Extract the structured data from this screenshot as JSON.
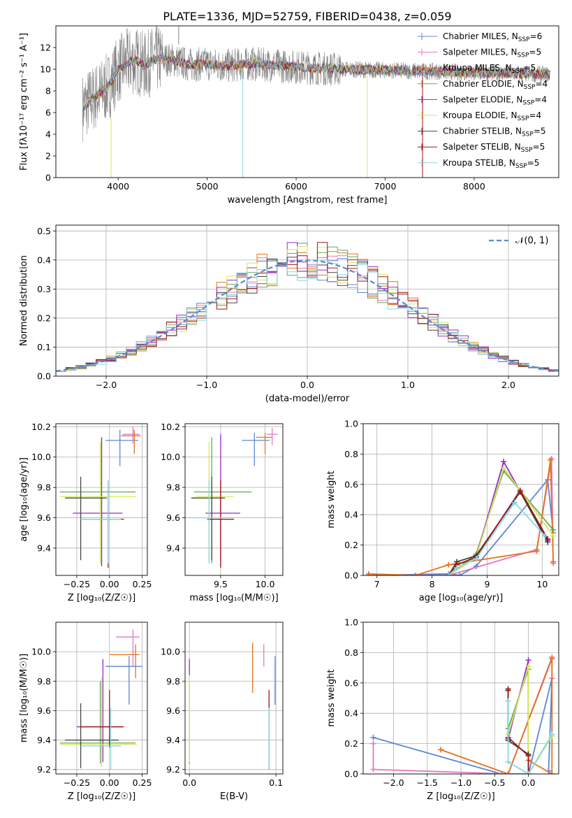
{
  "figure": {
    "title": "PLATE=1336, MJD=52759, FIBERID=0438, z=0.059"
  },
  "colors": {
    "Chabrier MILES": "#5b87d6",
    "Salpeter MILES": "#e377c2",
    "Kroupa MILES": "#e3731c",
    "Chabrier ELODIE": "#6aa84f",
    "Salpeter ELODIE": "#9a28c9",
    "Kroupa ELODIE": "#d4e85c",
    "Chabrier STELIB": "#444444",
    "Salpeter STELIB": "#a31515",
    "Kroupa STELIB": "#86d7e3",
    "data_spectrum": "#808080",
    "normal_curve": "#5b87d6"
  },
  "chart_data": [
    {
      "id": "spectrum",
      "type": "line",
      "xlabel": "wavelength [Angstrom, rest frame]",
      "ylabel": "Flux [fλ10⁻¹⁷ erg cm⁻² s⁻¹ A⁻¹]",
      "xlim": [
        3300,
        8950
      ],
      "ylim": [
        0,
        14
      ],
      "xticks": [
        4000,
        5000,
        6000,
        7000,
        8000
      ],
      "yticks": [
        0,
        2,
        4,
        6,
        8,
        10,
        12
      ],
      "grid": false,
      "legend": "top-right",
      "continuum": {
        "x": [
          3600,
          3700,
          3800,
          3900,
          4000,
          4100,
          4200,
          4300,
          4400,
          4600,
          4800,
          5000,
          5200,
          5500,
          6000,
          6500,
          7000,
          7500,
          8000,
          8500,
          8850
        ],
        "y": [
          6.5,
          7.2,
          7.8,
          8.5,
          10.0,
          10.6,
          10.8,
          10.3,
          10.9,
          10.9,
          10.4,
          10.5,
          10.3,
          10.5,
          10.2,
          10.0,
          9.9,
          9.8,
          9.7,
          9.6,
          9.5
        ]
      },
      "series": [
        {
          "name": "Chabrier MILES, N_SSP=6"
        },
        {
          "name": "Salpeter MILES, N_SSP=5"
        },
        {
          "name": "Kroupa MILES, N_SSP=5"
        },
        {
          "name": "Chabrier ELODIE, N_SSP=4"
        },
        {
          "name": "Salpeter ELODIE, N_SSP=4"
        },
        {
          "name": "Kroupa ELODIE, N_SSP=4"
        },
        {
          "name": "Chabrier STELIB, N_SSP=5"
        },
        {
          "name": "Salpeter STELIB, N_SSP=5"
        },
        {
          "name": "Kroupa STELIB, N_SSP=5"
        }
      ]
    },
    {
      "id": "residuals",
      "type": "line",
      "xlabel": "(data-model)/error",
      "ylabel": "Normed distribution",
      "xlim": [
        -2.5,
        2.5
      ],
      "ylim": [
        0,
        0.52
      ],
      "xticks": [
        -2,
        -1,
        0,
        1,
        2
      ],
      "yticks": [
        0.0,
        0.1,
        0.2,
        0.3,
        0.4,
        0.5
      ],
      "grid": true,
      "legend": "top-right",
      "legend_label": "𝒩(0, 1)",
      "bin_width": 0.1
    },
    {
      "id": "age-vs-Z",
      "type": "scatter",
      "xlabel": "Z [log₁₀(Z/Z☉)]",
      "ylabel": "age  [log₁₀(age/yr)]",
      "xlim": [
        -0.41,
        0.29
      ],
      "ylim": [
        9.22,
        10.22
      ],
      "xticks": [
        -0.25,
        0.0,
        0.25
      ],
      "yticks": [
        9.4,
        9.6,
        9.8,
        10.0,
        10.2
      ],
      "grid": true,
      "points": [
        {
          "model": "Chabrier MILES",
          "x": 0.08,
          "y": 10.11,
          "xlo": -0.03,
          "xhi": 0.22,
          "ylo": 9.94,
          "yhi": 10.18
        },
        {
          "model": "Salpeter MILES",
          "x": 0.18,
          "y": 10.15,
          "xlo": 0.1,
          "xhi": 0.23,
          "ylo": 10.09,
          "yhi": 10.2
        },
        {
          "model": "Kroupa MILES",
          "x": 0.19,
          "y": 10.14,
          "xlo": 0.09,
          "xhi": 0.24,
          "ylo": 10.02,
          "yhi": 10.18
        },
        {
          "model": "Chabrier ELODIE",
          "x": -0.06,
          "y": 9.77,
          "xlo": -0.38,
          "xhi": 0.2,
          "ylo": 9.28,
          "yhi": 10.13
        },
        {
          "model": "Salpeter ELODIE",
          "x": -0.06,
          "y": 9.63,
          "xlo": -0.28,
          "xhi": 0.1,
          "ylo": 9.28,
          "yhi": 10.13
        },
        {
          "model": "Kroupa ELODIE",
          "x": -0.07,
          "y": 9.74,
          "xlo": -0.38,
          "xhi": 0.2,
          "ylo": 9.3,
          "yhi": 10.1
        },
        {
          "model": "Chabrier STELIB",
          "x": -0.22,
          "y": 9.73,
          "xlo": -0.34,
          "xhi": -0.02,
          "ylo": 9.32,
          "yhi": 9.87
        },
        {
          "model": "Salpeter STELIB",
          "x": -0.01,
          "y": 9.59,
          "xlo": -0.22,
          "xhi": 0.11,
          "ylo": 9.27,
          "yhi": 9.84
        },
        {
          "model": "Kroupa STELIB",
          "x": -0.01,
          "y": 9.59,
          "xlo": -0.22,
          "xhi": 0.09,
          "ylo": 9.3,
          "yhi": 9.85
        }
      ]
    },
    {
      "id": "age-vs-mass",
      "type": "scatter",
      "xlabel": "mass [log₁₀(M/M☉)]",
      "xlim": [
        9.1,
        10.2
      ],
      "ylim": [
        9.22,
        10.22
      ],
      "xticks": [
        9.5,
        10.0
      ],
      "yticks": [
        9.4,
        9.6,
        9.8,
        10.0,
        10.2
      ],
      "grid": true,
      "points": [
        {
          "model": "Chabrier MILES",
          "x": 9.88,
          "y": 10.11,
          "xlo": 9.74,
          "xhi": 10.05,
          "ylo": 9.94,
          "yhi": 10.16
        },
        {
          "model": "Salpeter MILES",
          "x": 10.08,
          "y": 10.15,
          "xlo": 10.02,
          "xhi": 10.14,
          "ylo": 10.08,
          "yhi": 10.19
        },
        {
          "model": "Kroupa MILES",
          "x": 10.0,
          "y": 10.13,
          "xlo": 9.9,
          "xhi": 10.08,
          "ylo": 10.02,
          "yhi": 10.16
        },
        {
          "model": "Chabrier ELODIE",
          "x": 9.4,
          "y": 9.77,
          "xlo": 9.2,
          "xhi": 9.85,
          "ylo": 9.3,
          "yhi": 10.13
        },
        {
          "model": "Salpeter ELODIE",
          "x": 9.5,
          "y": 9.63,
          "xlo": 9.33,
          "xhi": 9.72,
          "ylo": 9.28,
          "yhi": 10.15
        },
        {
          "model": "Kroupa ELODIE",
          "x": 9.37,
          "y": 9.74,
          "xlo": 9.22,
          "xhi": 9.65,
          "ylo": 9.32,
          "yhi": 10.1
        },
        {
          "model": "Chabrier STELIB",
          "x": 9.4,
          "y": 9.73,
          "xlo": 9.17,
          "xhi": 9.55,
          "ylo": 9.32,
          "yhi": 9.87
        },
        {
          "model": "Salpeter STELIB",
          "x": 9.5,
          "y": 9.59,
          "xlo": 9.35,
          "xhi": 9.65,
          "ylo": 9.27,
          "yhi": 9.85
        },
        {
          "model": "Kroupa STELIB",
          "x": 9.37,
          "y": 9.6,
          "xlo": 9.15,
          "xhi": 9.55,
          "ylo": 9.3,
          "yhi": 9.85
        }
      ]
    },
    {
      "id": "mass-weight-vs-age",
      "type": "line",
      "xlabel": "age  [log₁₀(age/yr)]",
      "ylabel": "mass weight",
      "xlim": [
        6.75,
        10.3
      ],
      "ylim": [
        0,
        1.0
      ],
      "xticks": [
        7,
        8,
        9,
        10
      ],
      "yticks": [
        0.0,
        0.2,
        0.4,
        0.6,
        0.8,
        1.0
      ],
      "grid": true,
      "series": [
        {
          "model": "Chabrier MILES",
          "x": [
            6.85,
            8.3,
            8.5,
            8.8,
            10.1,
            10.2
          ],
          "y": [
            0.0,
            0.01,
            0.0,
            0.06,
            0.63,
            0.28
          ]
        },
        {
          "model": "Salpeter MILES",
          "x": [
            6.85,
            8.3,
            9.9,
            10.17,
            10.2
          ],
          "y": [
            0.0,
            0.0,
            0.17,
            0.77,
            0.08
          ]
        },
        {
          "model": "Kroupa MILES",
          "x": [
            6.85,
            7.7,
            8.3,
            9.9,
            10.15,
            10.2
          ],
          "y": [
            0.01,
            0.0,
            0.07,
            0.16,
            0.76,
            0.09
          ]
        },
        {
          "model": "Chabrier ELODIE",
          "x": [
            8.3,
            8.8,
            9.3,
            10.2
          ],
          "y": [
            0.0,
            0.14,
            0.69,
            0.3
          ]
        },
        {
          "model": "Salpeter ELODIE",
          "x": [
            8.3,
            8.8,
            9.3,
            10.1
          ],
          "y": [
            0.0,
            0.12,
            0.75,
            0.23
          ]
        },
        {
          "model": "Kroupa ELODIE",
          "x": [
            8.3,
            8.8,
            9.3,
            10.2
          ],
          "y": [
            0.0,
            0.12,
            0.71,
            0.26
          ]
        },
        {
          "model": "Chabrier STELIB",
          "x": [
            8.3,
            8.45,
            8.8,
            9.6,
            10.1
          ],
          "y": [
            0.0,
            0.09,
            0.13,
            0.55,
            0.22
          ]
        },
        {
          "model": "Salpeter STELIB",
          "x": [
            8.3,
            8.45,
            8.8,
            9.6,
            10.1
          ],
          "y": [
            0.0,
            0.07,
            0.12,
            0.56,
            0.24
          ]
        },
        {
          "model": "Kroupa STELIB",
          "x": [
            8.3,
            8.45,
            8.8,
            9.5,
            10.05
          ],
          "y": [
            0.0,
            0.05,
            0.11,
            0.48,
            0.26
          ]
        }
      ]
    },
    {
      "id": "mass-vs-Z",
      "type": "scatter",
      "xlabel": "Z [log₁₀(Z/Z☉)]",
      "ylabel": "mass [log₁₀(M/M☉)]",
      "xlim": [
        -0.41,
        0.29
      ],
      "ylim": [
        9.17,
        10.2
      ],
      "xticks": [
        -0.25,
        0.0,
        0.25
      ],
      "yticks": [
        9.2,
        9.4,
        9.6,
        9.8,
        10.0
      ],
      "grid": true,
      "points": [
        {
          "model": "Chabrier MILES",
          "x": 0.15,
          "y": 9.9,
          "xlo": -0.03,
          "xhi": 0.25,
          "ylo": 9.64,
          "yhi": 9.97
        },
        {
          "model": "Salpeter MILES",
          "x": 0.18,
          "y": 10.1,
          "xlo": 0.05,
          "xhi": 0.23,
          "ylo": 9.9,
          "yhi": 10.15
        },
        {
          "model": "Kroupa MILES",
          "x": 0.2,
          "y": 9.98,
          "xlo": 0.0,
          "xhi": 0.23,
          "ylo": 9.82,
          "yhi": 10.05
        },
        {
          "model": "Chabrier ELODIE",
          "x": -0.07,
          "y": 9.38,
          "xlo": -0.38,
          "xhi": 0.2,
          "ylo": 9.24,
          "yhi": 9.8
        },
        {
          "model": "Salpeter ELODIE",
          "x": -0.05,
          "y": 9.49,
          "xlo": -0.25,
          "xhi": 0.1,
          "ylo": 9.25,
          "yhi": 9.95
        },
        {
          "model": "Kroupa ELODIE",
          "x": -0.06,
          "y": 9.37,
          "xlo": -0.38,
          "xhi": 0.21,
          "ylo": 9.22,
          "yhi": 9.83
        },
        {
          "model": "Chabrier STELIB",
          "x": -0.22,
          "y": 9.4,
          "xlo": -0.34,
          "xhi": 0.07,
          "ylo": 9.21,
          "yhi": 9.65
        },
        {
          "model": "Salpeter STELIB",
          "x": 0.0,
          "y": 9.49,
          "xlo": -0.22,
          "xhi": 0.11,
          "ylo": 9.35,
          "yhi": 9.74
        },
        {
          "model": "Kroupa STELIB",
          "x": 0.01,
          "y": 9.36,
          "xlo": -0.22,
          "xhi": 0.09,
          "ylo": 9.2,
          "yhi": 9.62
        }
      ]
    },
    {
      "id": "mass-vs-ebv",
      "type": "scatter",
      "xlabel": "E(B-V)",
      "xlim": [
        -0.005,
        0.108
      ],
      "ylim": [
        9.17,
        10.2
      ],
      "xticks": [
        0.0,
        0.1
      ],
      "yticks": [
        9.2,
        9.4,
        9.6,
        9.8,
        10.0
      ],
      "grid": true,
      "points": [
        {
          "model": "Chabrier MILES",
          "x": 0.099,
          "y": 9.9,
          "ylo": 9.64,
          "yhi": 9.97
        },
        {
          "model": "Salpeter MILES",
          "x": 0.086,
          "y": 10.05,
          "ylo": 9.9,
          "yhi": 10.05
        },
        {
          "model": "Kroupa MILES",
          "x": 0.073,
          "y": 9.9,
          "ylo": 9.72,
          "yhi": 10.06
        },
        {
          "model": "Chabrier ELODIE",
          "x": 0.0,
          "y": 9.38,
          "ylo": 9.24,
          "yhi": 9.8
        },
        {
          "model": "Salpeter ELODIE",
          "x": 0.0,
          "y": 9.89,
          "ylo": 9.84,
          "yhi": 9.95
        },
        {
          "model": "Kroupa ELODIE",
          "x": 0.0,
          "y": 9.5,
          "ylo": 9.25,
          "yhi": 9.84
        },
        {
          "model": "Chabrier STELIB",
          "x": 0.092,
          "y": 9.43,
          "ylo": 9.2,
          "yhi": 9.65
        },
        {
          "model": "Salpeter STELIB",
          "x": 0.092,
          "y": 9.68,
          "ylo": 9.63,
          "yhi": 9.74
        },
        {
          "model": "Kroupa STELIB",
          "x": 0.092,
          "y": 9.4,
          "ylo": 9.2,
          "yhi": 9.62
        }
      ]
    },
    {
      "id": "mass-weight-vs-Z",
      "type": "line",
      "xlabel": "Z [log₁₀(Z/Z☉)]",
      "ylabel": "mass weight",
      "xlim": [
        -2.45,
        0.45
      ],
      "ylim": [
        0,
        1.0
      ],
      "xticks": [
        -2.0,
        -1.5,
        -1.0,
        -0.5,
        0.0
      ],
      "yticks": [
        0.0,
        0.2,
        0.4,
        0.6,
        0.8,
        1.0
      ],
      "grid": true,
      "series": [
        {
          "model": "Chabrier MILES",
          "x": [
            -2.3,
            -0.4,
            0.0,
            0.35,
            0.3
          ],
          "y": [
            0.24,
            0.0,
            0.0,
            0.63,
            0.02
          ]
        },
        {
          "model": "Salpeter MILES",
          "x": [
            -2.3,
            -2.3,
            -0.3,
            0.35,
            0.35
          ],
          "y": [
            0.2,
            0.03,
            0.0,
            0.77,
            0.63
          ]
        },
        {
          "model": "Kroupa MILES",
          "x": [
            -1.3,
            -0.3,
            0.35,
            0.35,
            0.0
          ],
          "y": [
            0.16,
            0.0,
            0.76,
            0.0,
            0.09
          ]
        },
        {
          "model": "Chabrier ELODIE",
          "x": [
            -0.3,
            0.0,
            0.0,
            0.35
          ],
          "y": [
            0.3,
            0.69,
            0.0,
            0.25
          ]
        },
        {
          "model": "Salpeter ELODIE",
          "x": [
            -0.3,
            0.0,
            0.0
          ],
          "y": [
            0.23,
            0.75,
            0.0
          ]
        },
        {
          "model": "Kroupa ELODIE",
          "x": [
            -0.3,
            0.0,
            0.0,
            0.35
          ],
          "y": [
            0.26,
            0.71,
            0.0,
            0.25
          ]
        },
        {
          "model": "Chabrier STELIB",
          "x": [
            -0.3,
            -0.3,
            0.0,
            0.0
          ],
          "y": [
            0.55,
            0.22,
            0.13,
            0.0
          ]
        },
        {
          "model": "Salpeter STELIB",
          "x": [
            -0.3,
            -0.3,
            0.0,
            0.0
          ],
          "y": [
            0.56,
            0.24,
            0.12,
            0.0
          ]
        },
        {
          "model": "Kroupa STELIB",
          "x": [
            -0.3,
            -0.3,
            0.0,
            0.35
          ],
          "y": [
            0.48,
            0.08,
            0.0,
            0.26
          ]
        }
      ]
    }
  ]
}
